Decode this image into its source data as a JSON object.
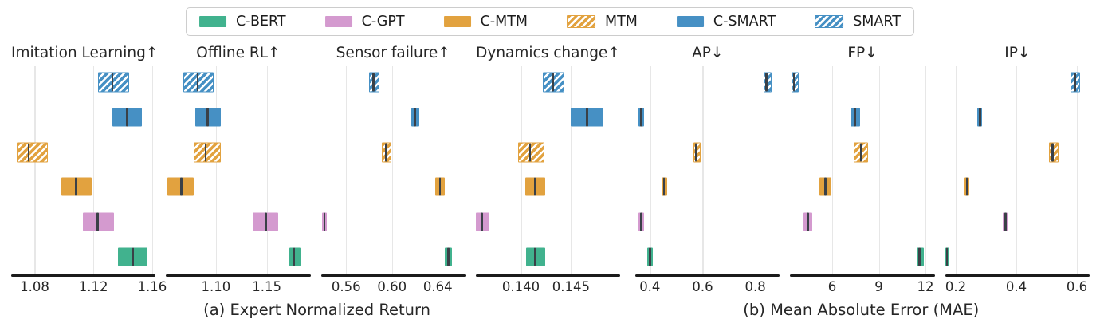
{
  "figure_title": "",
  "chart_data": {
    "type": "box",
    "orientation": "horizontal",
    "grid": "vertical-only",
    "legend": {
      "position": "top-center",
      "entries": [
        {
          "label": "C-BERT",
          "color": "#41B28E",
          "hatched": false
        },
        {
          "label": "C-GPT",
          "color": "#D49ACF",
          "hatched": false
        },
        {
          "label": "C-MTM",
          "color": "#E2A23F",
          "hatched": false
        },
        {
          "label": "MTM",
          "color": "#E2A23F",
          "hatched": true
        },
        {
          "label": "C-SMART",
          "color": "#4690C4",
          "hatched": false
        },
        {
          "label": "SMART",
          "color": "#4690C4",
          "hatched": true
        }
      ]
    },
    "row_order_top_to_bottom": [
      "SMART",
      "C-SMART",
      "MTM",
      "C-MTM",
      "C-GPT",
      "C-BERT"
    ],
    "box_value_format": "[low, median, high]",
    "panels": [
      {
        "title": "Imitation Learning↑",
        "xlim": [
          1.064,
          1.1624
        ],
        "tick_values": [
          1.08,
          1.12,
          1.16
        ],
        "tick_labels": [
          "1.08",
          "1.12",
          "1.16"
        ],
        "boxes": {
          "SMART": [
            1.123,
            1.133,
            1.143
          ],
          "C-SMART": [
            1.133,
            1.143,
            1.153
          ],
          "MTM": [
            1.068,
            1.076,
            1.088
          ],
          "C-MTM": [
            1.098,
            1.108,
            1.119
          ],
          "C-GPT": [
            1.113,
            1.123,
            1.134
          ],
          "C-BERT": [
            1.137,
            1.147,
            1.157
          ]
        }
      },
      {
        "title": "Offline RL↑",
        "xlim": [
          1.051,
          1.193
        ],
        "tick_values": [
          1.1,
          1.15
        ],
        "tick_labels": [
          "1.10",
          "1.15"
        ],
        "boxes": {
          "SMART": [
            1.068,
            1.082,
            1.096
          ],
          "C-SMART": [
            1.08,
            1.092,
            1.105
          ],
          "MTM": [
            1.078,
            1.09,
            1.103
          ],
          "C-MTM": [
            1.052,
            1.066,
            1.078
          ],
          "C-GPT": [
            1.136,
            1.149,
            1.161
          ],
          "C-BERT": [
            1.172,
            1.177,
            1.183
          ]
        }
      },
      {
        "title": "Sensor failure↑",
        "xlim": [
          0.538,
          0.664
        ],
        "tick_values": [
          0.56,
          0.6,
          0.64
        ],
        "tick_labels": [
          "0.56",
          "0.60",
          "0.64"
        ],
        "boxes": {
          "SMART": [
            0.58,
            0.584,
            0.588
          ],
          "C-SMART": [
            0.617,
            0.62,
            0.624
          ],
          "MTM": [
            0.591,
            0.595,
            0.598
          ],
          "C-MTM": [
            0.638,
            0.642,
            0.646
          ],
          "C-GPT": [
            0.539,
            0.541,
            0.543
          ],
          "C-BERT": [
            0.646,
            0.649,
            0.652
          ]
        }
      },
      {
        "title": "Dynamics change↑",
        "xlim": [
          0.1355,
          0.1499
        ],
        "tick_values": [
          0.14,
          0.145
        ],
        "tick_labels": [
          "0.140",
          "0.145"
        ],
        "boxes": {
          "SMART": [
            0.1422,
            0.1432,
            0.1442
          ],
          "C-SMART": [
            0.145,
            0.1466,
            0.1482
          ],
          "MTM": [
            0.1397,
            0.1409,
            0.1422
          ],
          "C-MTM": [
            0.1404,
            0.1414,
            0.1424
          ],
          "C-GPT": [
            0.1351,
            0.1361,
            0.1369
          ],
          "C-BERT": [
            0.1405,
            0.1414,
            0.1424
          ]
        }
      },
      {
        "title": "AP↓",
        "xlim": [
          0.345,
          0.893
        ],
        "tick_values": [
          0.4,
          0.6,
          0.8
        ],
        "tick_labels": [
          "0.4",
          "0.6",
          "0.8"
        ],
        "boxes": {
          "SMART": [
            0.832,
            0.842,
            0.855
          ],
          "C-SMART": [
            0.358,
            0.368,
            0.378
          ],
          "MTM": [
            0.564,
            0.574,
            0.586
          ],
          "C-MTM": [
            0.444,
            0.454,
            0.466
          ],
          "C-GPT": [
            0.358,
            0.367,
            0.378
          ],
          "C-BERT": [
            0.39,
            0.4,
            0.41
          ]
        }
      },
      {
        "title": "FP↓",
        "xlim": [
          3.3,
          12.6
        ],
        "tick_values": [
          6,
          9,
          12
        ],
        "tick_labels": [
          "6",
          "9",
          "12"
        ],
        "boxes": {
          "SMART": [
            3.37,
            3.53,
            3.72
          ],
          "C-SMART": [
            7.16,
            7.46,
            7.8
          ],
          "MTM": [
            7.38,
            7.84,
            8.18
          ],
          "C-MTM": [
            5.2,
            5.56,
            5.93
          ],
          "C-GPT": [
            4.14,
            4.43,
            4.73
          ],
          "C-BERT": [
            11.45,
            11.63,
            11.88
          ]
        }
      },
      {
        "title": "IP↓",
        "xlim": [
          0.165,
          0.642
        ],
        "tick_values": [
          0.2,
          0.4,
          0.6
        ],
        "tick_labels": [
          "0.2",
          "0.4",
          "0.6"
        ],
        "boxes": {
          "SMART": [
            0.58,
            0.593,
            0.604
          ],
          "C-SMART": [
            0.272,
            0.28,
            0.288
          ],
          "MTM": [
            0.509,
            0.52,
            0.533
          ],
          "C-MTM": [
            0.229,
            0.237,
            0.244
          ],
          "C-GPT": [
            0.356,
            0.364,
            0.372
          ],
          "C-BERT": [
            0.165,
            0.171,
            0.179
          ]
        }
      }
    ],
    "captions": [
      {
        "label": "(a) Expert Normalized Return",
        "panels": [
          0,
          3
        ]
      },
      {
        "label": "(b) Mean Absolute Error (MAE)",
        "panels": [
          4,
          6
        ]
      }
    ],
    "colors": {
      "median_line": "#3A4047",
      "gridline": "#E7E7E7",
      "axis_line": "#1B1B1B",
      "text": "#262626",
      "legend_border": "#CCCCCC"
    }
  }
}
